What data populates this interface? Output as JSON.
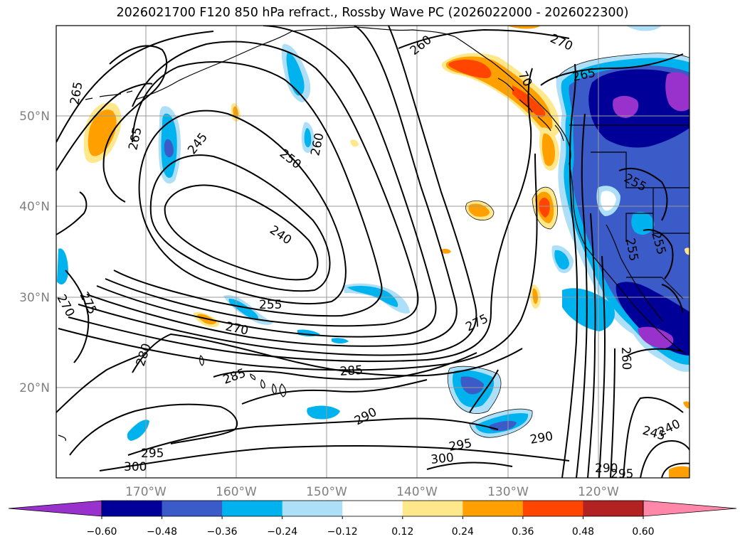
{
  "title": "2026021700 F120 850 hPa refract., Rossby Wave PC (2026022000 - 2026022300)",
  "map": {
    "lat_labels": [
      "50°N",
      "40°N",
      "30°N",
      "20°N"
    ],
    "lon_labels": [
      "170°W",
      "160°W",
      "150°W",
      "140°W",
      "130°W",
      "120°W"
    ],
    "contour_labels": {
      "c265a": "265",
      "c265b": "265",
      "c245": "245",
      "c250": "250",
      "c260a": "260",
      "c240": "240",
      "c255a": "255",
      "c270a": "270",
      "c275a": "275",
      "c270b": "270",
      "c280": "280",
      "c285a": "285",
      "c285b": "285",
      "c275b": "275",
      "c290a": "290",
      "c295": "295",
      "c300a": "300",
      "c300b": "300",
      "c295b": "295",
      "c290b": "290",
      "c290c": "290",
      "c260b": "260",
      "c270c": "270",
      "c265c": "265",
      "c255b": "255",
      "c255c": "255",
      "c255d": "255",
      "c260c": "260",
      "c245b": "245",
      "c240b": "240",
      "c295c": "295",
      "c70": "70"
    },
    "colors": {
      "purple": "#9932CC",
      "navy": "#000099",
      "royal": "#3A5BC8",
      "sky": "#00B2EE",
      "pale": "#ADDFF8",
      "yellow": "#FFE88C",
      "orange": "#FFA000",
      "redorange": "#FF4500",
      "brick": "#B22222",
      "pink": "#FF88AA"
    }
  },
  "colorbar": {
    "ticks": [
      "−0.60",
      "−0.48",
      "−0.36",
      "−0.24",
      "−0.12",
      "0.12",
      "0.24",
      "0.36",
      "0.48",
      "0.60"
    ],
    "colors": [
      "#9932CC",
      "#000099",
      "#3A5BC8",
      "#00B2EE",
      "#ADDFF8",
      "#FFFFFF",
      "#FFE88C",
      "#FFA000",
      "#FF4500",
      "#B22222",
      "#FF88AA"
    ]
  }
}
